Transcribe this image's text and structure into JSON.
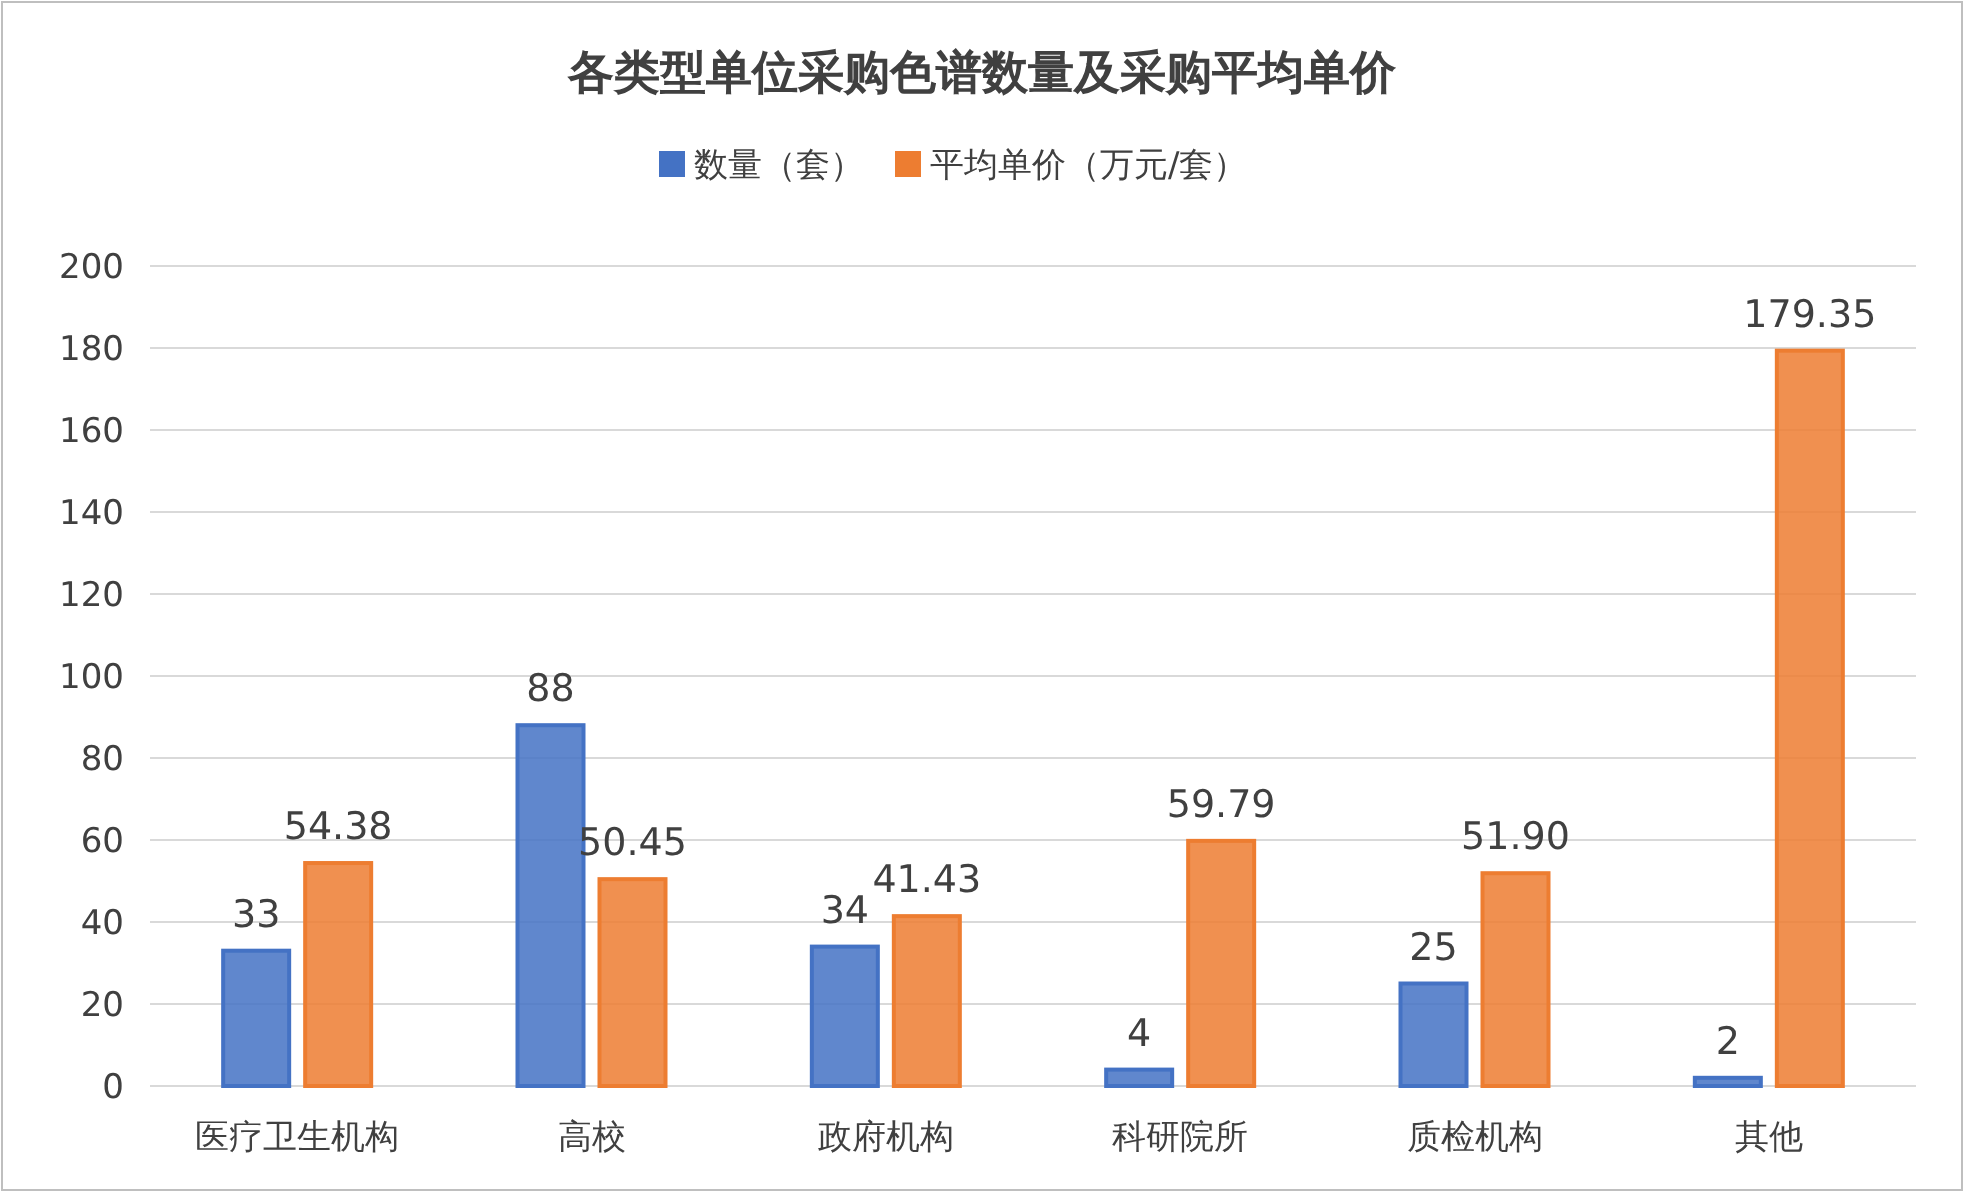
{
  "chart_data": {
    "type": "bar",
    "title": "各类型单位采购色谱数量及采购平均单价",
    "categories": [
      "医疗卫生机构",
      "高校",
      "政府机构",
      "科研院所",
      "质检机构",
      "其他"
    ],
    "series": [
      {
        "name": "数量（套）",
        "color": "#4472c4",
        "values": [
          33,
          88,
          34,
          4,
          25,
          2
        ],
        "value_labels": [
          "33",
          "88",
          "34",
          "4",
          "25",
          "2"
        ]
      },
      {
        "name": "平均单价（万元/套）",
        "color": "#ed7d31",
        "values": [
          54.38,
          50.45,
          41.43,
          59.79,
          51.9,
          179.35
        ],
        "value_labels": [
          "54.38",
          "50.45",
          "41.43",
          "59.79",
          "51.90",
          "179.35"
        ]
      }
    ],
    "ylim": [
      0,
      200
    ],
    "yticks": [
      0,
      20,
      40,
      60,
      80,
      100,
      120,
      140,
      160,
      180,
      200
    ],
    "grid": "y",
    "legend": "top"
  }
}
